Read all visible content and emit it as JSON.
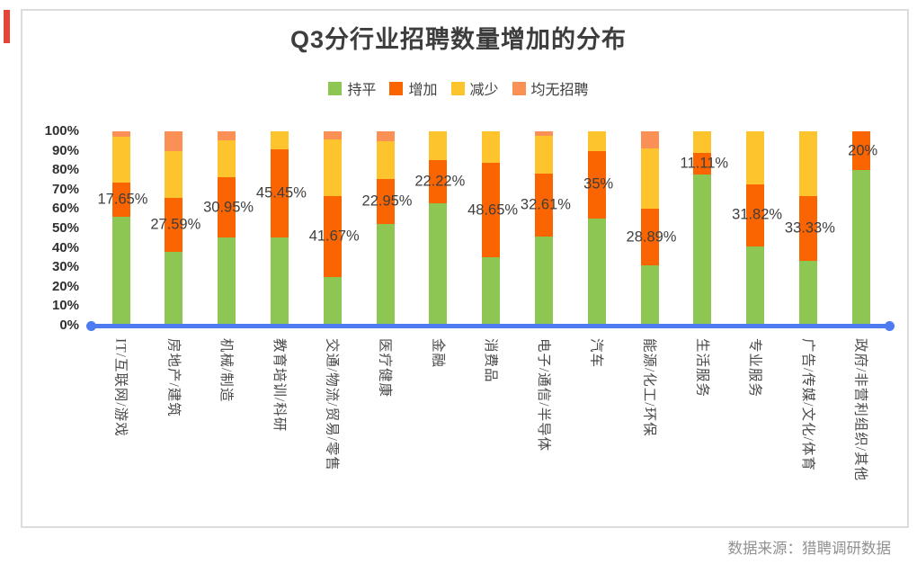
{
  "accent_bar_color": "#e74438",
  "card": {
    "source_note": "数据来源：猎聘调研数据"
  },
  "chart_data": {
    "type": "bar",
    "variant": "100-percent-stacked-column",
    "title": "Q3分行业招聘数量增加的分布",
    "legend_position": "top",
    "grid": false,
    "axis_line_color": "#4e7cf0",
    "ylim": [
      0,
      100
    ],
    "yticks": [
      "100%",
      "90%",
      "80%",
      "70%",
      "60%",
      "50%",
      "40%",
      "30%",
      "20%",
      "10%",
      "0%"
    ],
    "categories": [
      "IT/互联网/游戏",
      "房地产/建筑",
      "机械/制造",
      "教育培训/科研",
      "交通/物流/贸易/零售",
      "医疗健康",
      "金融",
      "消费品",
      "电子/通信/半导体",
      "汽车",
      "能源/化工/环保",
      "生活服务",
      "专业服务",
      "广告/传媒/文化/体育",
      "政府/非营利组织/其他"
    ],
    "series": [
      {
        "name": "持平",
        "key": "flat",
        "color": "#8dc653",
        "values": [
          55.88,
          37.93,
          45.24,
          45.45,
          25.0,
          52.46,
          62.96,
          35.14,
          45.65,
          55.0,
          31.11,
          77.78,
          40.91,
          33.33,
          80.0
        ]
      },
      {
        "name": "增加",
        "key": "increase",
        "color": "#fa6502",
        "values": [
          17.65,
          27.59,
          30.95,
          45.45,
          41.67,
          22.95,
          22.22,
          48.65,
          32.61,
          35.0,
          28.89,
          11.11,
          31.82,
          33.33,
          20.0
        ],
        "data_labels": [
          "17.65%",
          "27.59%",
          "30.95%",
          "45.45%",
          "41.67%",
          "22.95%",
          "22.22%",
          "48.65%",
          "32.61%",
          "35%",
          "28.89%",
          "11.11%",
          "31.82%",
          "33.33%",
          "20%"
        ]
      },
      {
        "name": "减少",
        "key": "decrease",
        "color": "#fec42d",
        "values": [
          23.53,
          24.14,
          19.05,
          9.09,
          29.17,
          19.67,
          14.81,
          16.22,
          19.57,
          10.0,
          31.11,
          11.11,
          27.27,
          33.33,
          0
        ]
      },
      {
        "name": "均无招聘",
        "key": "no-hiring",
        "color": "#fa9055",
        "values": [
          2.94,
          10.34,
          4.76,
          0,
          4.17,
          4.92,
          0,
          0,
          2.17,
          0,
          8.89,
          0,
          0,
          0,
          0
        ]
      }
    ]
  }
}
